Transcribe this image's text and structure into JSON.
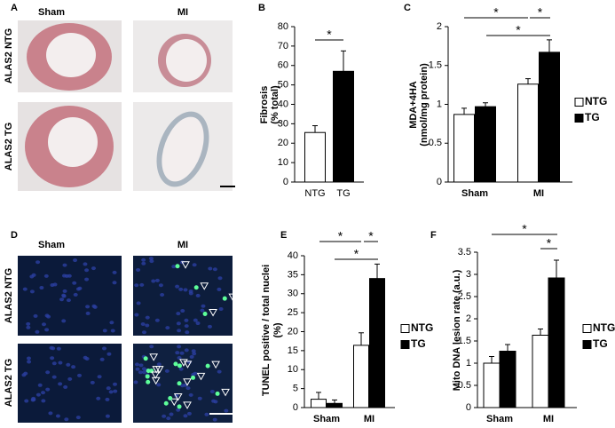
{
  "images": [
    {
      "label": "A",
      "columns": [
        "Sham",
        "MI"
      ],
      "rows": [
        "ALAS2 NTG",
        "ALAS2 TG"
      ]
    },
    {
      "label": "D",
      "columns": [
        "Sham",
        "MI"
      ],
      "rows": [
        "ALAS2 NTG",
        "ALAS2 TG"
      ]
    }
  ],
  "chart_data": [
    {
      "type": "bar",
      "panel_label": "B",
      "y_label": [
        "Fibrosis",
        "(% total)"
      ],
      "categories": [
        "NTG",
        "TG"
      ],
      "values": [
        25.5,
        57
      ],
      "errors": [
        3.5,
        10.5
      ],
      "colors": [
        "#ffffff",
        "#000000"
      ],
      "ylim": [
        0,
        80
      ],
      "yticks": [
        0,
        10,
        20,
        30,
        40,
        50,
        60,
        70,
        80
      ],
      "annotations": [
        "*"
      ]
    },
    {
      "type": "grouped-bar",
      "panel_label": "C",
      "y_label": [
        "MDA+4HA",
        "(nmol/mg protein)"
      ],
      "categories": [
        "Sham",
        "MI"
      ],
      "series": [
        {
          "name": "NTG",
          "color": "#ffffff",
          "values": [
            0.87,
            1.26
          ],
          "errors": [
            0.08,
            0.07
          ]
        },
        {
          "name": "TG",
          "color": "#000000",
          "values": [
            0.97,
            1.67
          ],
          "errors": [
            0.05,
            0.16
          ]
        }
      ],
      "ylim": [
        0,
        2
      ],
      "yticks": [
        0,
        0.5,
        1,
        1.5,
        2
      ],
      "annotations": [
        "*",
        "*",
        "*"
      ]
    },
    {
      "type": "grouped-bar",
      "panel_label": "E",
      "y_label": [
        "TUNEL positive / total nuclei",
        "(%)"
      ],
      "categories": [
        "Sham",
        "MI"
      ],
      "series": [
        {
          "name": "NTG",
          "color": "#ffffff",
          "values": [
            2.2,
            16.4
          ],
          "errors": [
            1.8,
            3.3
          ]
        },
        {
          "name": "TG",
          "color": "#000000",
          "values": [
            1.1,
            34
          ],
          "errors": [
            0.9,
            3.8
          ]
        }
      ],
      "ylim": [
        0,
        40
      ],
      "yticks": [
        0,
        5,
        10,
        15,
        20,
        25,
        30,
        35,
        40
      ],
      "annotations": [
        "*",
        "*",
        "*"
      ]
    },
    {
      "type": "grouped-bar",
      "panel_label": "F",
      "y_label": [
        "Mito DNA lesion rate (a.u.)"
      ],
      "categories": [
        "Sham",
        "MI"
      ],
      "series": [
        {
          "name": "NTG",
          "color": "#ffffff",
          "values": [
            1.0,
            1.63
          ],
          "errors": [
            0.15,
            0.14
          ]
        },
        {
          "name": "TG",
          "color": "#000000",
          "values": [
            1.27,
            2.92
          ],
          "errors": [
            0.15,
            0.4
          ]
        }
      ],
      "ylim": [
        0,
        3.5
      ],
      "yticks": [
        0,
        0.5,
        1,
        1.5,
        2,
        2.5,
        3,
        3.5
      ],
      "annotations": [
        "*",
        "*"
      ]
    }
  ]
}
